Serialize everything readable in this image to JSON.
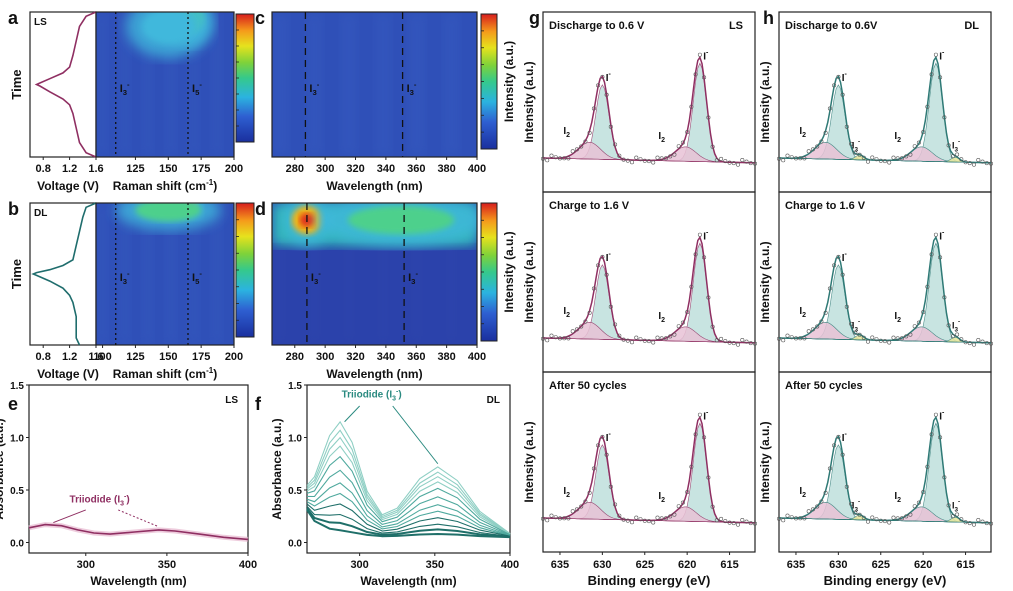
{
  "figure": {
    "panel_letters": [
      "a",
      "b",
      "c",
      "d",
      "e",
      "f",
      "g",
      "h"
    ]
  },
  "chart_data": [
    {
      "panel": "a",
      "type": "line",
      "tag": "LS",
      "xlabel": "Voltage (V)",
      "ylabel": "Time",
      "xlim": [
        0.6,
        1.6
      ],
      "xticks": [
        "0.8",
        "1.2",
        "1.6"
      ],
      "color": "#8f2f62",
      "x": [
        1.6,
        1.45,
        1.35,
        1.3,
        1.25,
        1.2,
        1.1,
        0.9,
        0.75,
        0.7,
        0.75,
        0.9,
        1.1,
        1.2,
        1.25,
        1.3,
        1.35,
        1.45,
        1.6
      ],
      "y": [
        1.0,
        0.97,
        0.9,
        0.8,
        0.7,
        0.62,
        0.58,
        0.54,
        0.51,
        0.5,
        0.49,
        0.45,
        0.4,
        0.36,
        0.3,
        0.2,
        0.1,
        0.03,
        0.0
      ]
    },
    {
      "panel": "a-map",
      "type": "heatmap",
      "xlabel": "Raman shift (cm",
      "xlabel_sup": "-1",
      "xlabel_end": ")",
      "xlim": [
        95,
        200
      ],
      "xticks": [
        "125",
        "150",
        "175",
        "200"
      ],
      "marker_labels": [
        "I3-",
        "I5-"
      ],
      "marker_x": [
        110,
        165
      ],
      "hotspots": [
        {
          "x": 165,
          "t": 0.95,
          "level": 0.55,
          "rx": 12,
          "rt": 0.1
        },
        {
          "x": 150,
          "t": 0.9,
          "level": 0.35,
          "rx": 20,
          "rt": 0.12
        }
      ]
    },
    {
      "panel": "b",
      "type": "line",
      "tag": "DL",
      "xlabel": "Voltage (V)",
      "ylabel": "Time",
      "xlim": [
        0.6,
        1.6
      ],
      "xticks": [
        "0.8",
        "1.2",
        "1.6"
      ],
      "color": "#1f6d6d",
      "x": [
        1.6,
        1.45,
        1.4,
        1.35,
        1.3,
        1.25,
        1.1,
        0.9,
        0.7,
        0.65,
        0.7,
        0.9,
        1.1,
        1.2,
        1.25,
        1.3,
        1.3,
        1.3,
        1.35
      ],
      "y": [
        1.0,
        0.97,
        0.9,
        0.8,
        0.7,
        0.6,
        0.56,
        0.53,
        0.51,
        0.5,
        0.49,
        0.45,
        0.4,
        0.35,
        0.3,
        0.2,
        0.1,
        0.05,
        0.0
      ]
    },
    {
      "panel": "b-map",
      "type": "heatmap",
      "xlabel": "Raman shift (cm",
      "xlabel_sup": "-1",
      "xlabel_end": ")",
      "xlim": [
        95,
        200
      ],
      "xticks": [
        "100",
        "125",
        "150",
        "175",
        "200"
      ],
      "marker_labels": [
        "I3-",
        "I5-"
      ],
      "marker_x": [
        110,
        165
      ],
      "hotspots": [
        {
          "x": 166,
          "t": 0.98,
          "level": 0.95,
          "rx": 6,
          "rt": 0.05
        },
        {
          "x": 150,
          "t": 0.95,
          "level": 0.45,
          "rx": 25,
          "rt": 0.08
        }
      ]
    },
    {
      "panel": "c",
      "type": "heatmap",
      "xlabel": "Wavelength (nm)",
      "xlim": [
        265,
        400
      ],
      "xticks": [
        "280",
        "300",
        "320",
        "340",
        "360",
        "380",
        "400"
      ],
      "colorbar_label": "Intensity (a.u.)",
      "marker_labels": [
        "I3-",
        "I3-"
      ],
      "marker_x": [
        287,
        351
      ],
      "hotspots": []
    },
    {
      "panel": "d",
      "type": "heatmap",
      "xlabel": "Wavelength (nm)",
      "xlim": [
        265,
        400
      ],
      "xticks": [
        "280",
        "300",
        "320",
        "340",
        "360",
        "380",
        "400"
      ],
      "colorbar_label": "Intensity (a.u.)",
      "marker_labels": [
        "I3-",
        "I3-"
      ],
      "marker_x": [
        288,
        352
      ],
      "hotspots": [
        {
          "x": 288,
          "t": 0.88,
          "level": 0.9,
          "rx": 10,
          "rt": 0.1
        },
        {
          "x": 350,
          "t": 0.88,
          "level": 0.5,
          "rx": 35,
          "rt": 0.1
        }
      ]
    },
    {
      "panel": "e",
      "type": "line",
      "tag": "LS",
      "xlabel": "Wavelength (nm)",
      "ylabel": "Absorbance (a.u.)",
      "xlim": [
        265,
        400
      ],
      "ylim": [
        -0.1,
        1.5
      ],
      "xticks": [
        "300",
        "350",
        "400"
      ],
      "yticks": [
        "0.0",
        "0.5",
        "1.0",
        "1.5"
      ],
      "annotation": "Triiodide (I",
      "annotation_sub": "3",
      "annotation_sup": "-",
      "annotation_end": ")",
      "color": "#8f2f62",
      "series": [
        {
          "x": [
            265,
            275,
            285,
            295,
            305,
            315,
            330,
            345,
            355,
            370,
            385,
            400
          ],
          "values": [
            0.14,
            0.17,
            0.16,
            0.12,
            0.09,
            0.08,
            0.1,
            0.12,
            0.11,
            0.08,
            0.05,
            0.03
          ]
        }
      ]
    },
    {
      "panel": "f",
      "type": "line",
      "tag": "DL",
      "xlabel": "Wavelength (nm)",
      "ylabel": "Absorbance (a.u.)",
      "xlim": [
        265,
        400
      ],
      "ylim": [
        -0.1,
        1.5
      ],
      "xticks": [
        "300",
        "350",
        "400"
      ],
      "yticks": [
        "0.0",
        "0.5",
        "1.0",
        "1.5"
      ],
      "annotation": "Triiodide (I",
      "annotation_sub": "3",
      "annotation_sup": "-",
      "annotation_end": ")",
      "color": "#2a8a80",
      "peak_scale": [
        1.08,
        1.0,
        0.93,
        0.85,
        0.75,
        0.62,
        0.5,
        0.4,
        0.3,
        0.2,
        0.12,
        0.05
      ],
      "x": [
        265,
        270,
        280,
        287,
        295,
        305,
        315,
        325,
        340,
        352,
        365,
        380,
        400
      ]
    },
    {
      "panel": "g",
      "type": "line",
      "tag": "LS",
      "xlabel": "Binding energy (eV)",
      "ylabel": "Intensity (a.u.)",
      "xlim": [
        637,
        612
      ],
      "xticks": [
        "635",
        "630",
        "625",
        "620",
        "615"
      ],
      "color": "#8f2f62",
      "fill_main": "#bfe0dc",
      "fill_minor": "#e8c3d6",
      "peaks": [
        "I-",
        "I-",
        "I2",
        "I2"
      ],
      "subplots": [
        {
          "title": "Discharge to 0.6 V",
          "show_i3": false
        },
        {
          "title": "Charge to 1.6 V",
          "show_i3": false
        },
        {
          "title": "After 50 cycles",
          "show_i3": false
        }
      ]
    },
    {
      "panel": "h",
      "type": "line",
      "tag": "DL",
      "xlabel": "Binding energy (eV)",
      "ylabel": "Intensity (a.u.)",
      "xlim": [
        637,
        612
      ],
      "xticks": [
        "635",
        "630",
        "625",
        "620",
        "615"
      ],
      "color": "#2f7a76",
      "fill_main": "#bfe0dc",
      "fill_minor": "#e8c3d6",
      "fill_i3": "#e6e69a",
      "peaks": [
        "I-",
        "I-",
        "I2",
        "I2",
        "I3-",
        "I3-"
      ],
      "subplots": [
        {
          "title": "Discharge to 0.6V",
          "show_i3": true
        },
        {
          "title": "Charge to 1.6 V",
          "show_i3": true
        },
        {
          "title": "After 50 cycles",
          "show_i3": true
        }
      ]
    }
  ]
}
